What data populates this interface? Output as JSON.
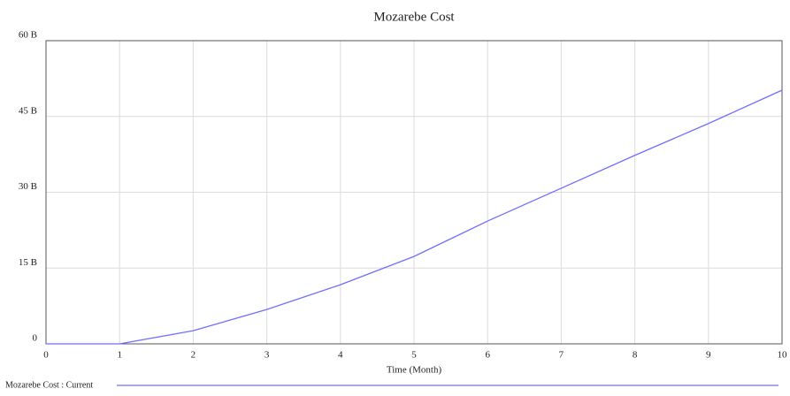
{
  "chart_data": {
    "type": "line",
    "title": "Mozarebe Cost",
    "x_label": "Time (Month)",
    "x": [
      0,
      1,
      2,
      3,
      4,
      5,
      6,
      7,
      8,
      9,
      10
    ],
    "series": [
      {
        "name": "Mozarebe Cost : Current",
        "color": "#6f6fff",
        "values": [
          0,
          0,
          2.6,
          6.8,
          11.7,
          17.3,
          24.3,
          30.8,
          37.3,
          43.6,
          50.2
        ]
      }
    ],
    "xlim": [
      0,
      10
    ],
    "xticks": [
      0,
      1,
      2,
      3,
      4,
      5,
      6,
      7,
      8,
      9,
      10
    ],
    "ylim": [
      0,
      60
    ],
    "yticks": [
      0,
      {
        "value": 15,
        "label": "15 B"
      },
      {
        "value": 30,
        "label": "30 B"
      },
      {
        "value": 45,
        "label": "45 B"
      },
      {
        "value": 60,
        "label": "60 B"
      }
    ],
    "grid": true
  }
}
